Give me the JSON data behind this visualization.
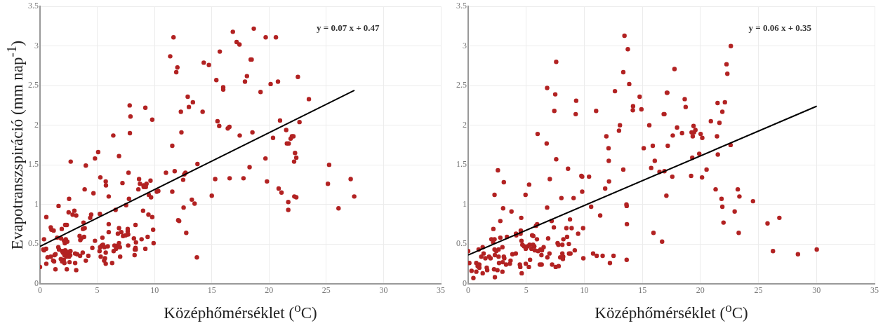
{
  "chart_data": [
    {
      "type": "scatter",
      "xlabel": "Középhőmérséklet ($^{o}$C)",
      "ylabel": "Evapotranszspiráció (mm nap$^{-1}$)",
      "annotations": [
        "y = 0.07 x + 0.47"
      ],
      "xlim": [
        0,
        35
      ],
      "xticks": [
        0,
        5,
        10,
        15,
        20,
        25,
        30,
        35
      ],
      "ylim": [
        0,
        3.5
      ],
      "yticks": [
        0,
        0.5,
        1,
        1.5,
        2,
        2.5,
        3,
        3.5
      ],
      "grid": true,
      "marker": "circle",
      "series": [
        {
          "color": "#b22222",
          "x": [
            11.66,
            11.37,
            12.0,
            11.9,
            15.7,
            14.3,
            14.75,
            15.4,
            16.0,
            16.0,
            12.9,
            13.35,
            13.0,
            12.3,
            14.2,
            7.83,
            7.9,
            7.85,
            9.2,
            9.8,
            15.5,
            15.65,
            16.4,
            6.4,
            12.35,
            11.55,
            6.9,
            5.08,
            4.8,
            2.68,
            4.0,
            13.75,
            7.73,
            11.0,
            11.76,
            12.7,
            12.6,
            5.27,
            5.74,
            5.76,
            8.65,
            9.65,
            7.2,
            12.5,
            15.3,
            8.73,
            9.04,
            9.3,
            9.06,
            9.24,
            8.59,
            3.9,
            11.55,
            10.33,
            10.2,
            6.0,
            9.5,
            9.7,
            15.0,
            4.67,
            7.77,
            2.54,
            1.62,
            7.52,
            13.26,
            13.5,
            12.54,
            2.5,
            3.0,
            2.85,
            3.16,
            4.47,
            4.38,
            5.23,
            6.6,
            9.0,
            9.47,
            9.8,
            0.55,
            3.8,
            3.9,
            3.75,
            6.0,
            8.34,
            12.07,
            12.15,
            2.2,
            2.34,
            0.94,
            1.0,
            1.19,
            1.9,
            6.9,
            7.1,
            7.66,
            7.66,
            6.0,
            9.88,
            12.77,
            3.46,
            3.6,
            3.52,
            3.85,
            6.8,
            7.25,
            7.48,
            7.7,
            5.45,
            8.2,
            8.87,
            9.4,
            1.5,
            1.84,
            2.1,
            2.17,
            2.25,
            2.38,
            0.35,
            4.8,
            8.38,
            9.92,
            6.9,
            6.78,
            6.97,
            7.7,
            8.34,
            8.28,
            9.2,
            5.39,
            5.5,
            5.25,
            5.2,
            5.63,
            5.74,
            5.92,
            6.5,
            6.43,
            6.64,
            4.57,
            0.35,
            0.53,
            0.29,
            1.6,
            1.66,
            1.93,
            2.0,
            2.2,
            2.34,
            2.54,
            2.66,
            2.44,
            2.13,
            2.64,
            2.3,
            2.54,
            3.07,
            3.24,
            3.5,
            3.73,
            4.22,
            5.3,
            5.67,
            7.0,
            8.26,
            8.36,
            0.94,
            0.66,
            1.27,
            1.35,
            1.15,
            1.23,
            1.82,
            2.07,
            1.93,
            2.13,
            2.58,
            3.07,
            4.0,
            5.6,
            5.74,
            6.3,
            0.55,
            0,
            1.35,
            2.34,
            3.16,
            13.7,
            16.84,
            18.67,
            19.71,
            20.6,
            17.17,
            17.42,
            18.4,
            18.48,
            18.07,
            17.9,
            20.78,
            22.52,
            20.14,
            19.26,
            23.48,
            20.96,
            22.66,
            16.54,
            17.44,
            18.55,
            21.5,
            20.35,
            21.89,
            22.0,
            22.13,
            21.56,
            21.72,
            22.27,
            22.38,
            22.19,
            19.69,
            18.3,
            25.25,
            16.56,
            17.77,
            27.13,
            19.82,
            25.14,
            20.84,
            21.09,
            22.21,
            22.38,
            27.44,
            21.68,
            21.68,
            26.07
          ],
          "values": [
            3.11,
            2.87,
            2.73,
            2.67,
            2.93,
            2.79,
            2.76,
            2.57,
            2.48,
            2.45,
            2.36,
            2.29,
            2.23,
            2.17,
            2.17,
            2.25,
            2.11,
            1.9,
            2.22,
            2.07,
            2.05,
            1.99,
            1.96,
            1.87,
            1.91,
            1.74,
            1.61,
            1.66,
            1.58,
            1.54,
            1.49,
            1.51,
            1.4,
            1.4,
            1.42,
            1.4,
            1.38,
            1.34,
            1.29,
            1.24,
            1.32,
            1.3,
            1.27,
            1.31,
            1.32,
            1.26,
            1.24,
            1.26,
            1.22,
            1.22,
            1.19,
            1.19,
            1.16,
            1.17,
            1.16,
            1.1,
            1.12,
            1.09,
            1.11,
            1.14,
            1.07,
            1.07,
            0.98,
            0.99,
            1.06,
            1.01,
            0.96,
            0.9,
            0.92,
            0.87,
            0.86,
            0.87,
            0.83,
            0.88,
            0.93,
            0.92,
            0.87,
            0.84,
            0.84,
            0.77,
            0.7,
            0.69,
            0.75,
            0.74,
            0.8,
            0.79,
            0.74,
            0.74,
            0.71,
            0.68,
            0.67,
            0.69,
            0.7,
            0.65,
            0.69,
            0.66,
            0.65,
            0.68,
            0.64,
            0.6,
            0.57,
            0.55,
            0.59,
            0.63,
            0.6,
            0.61,
            0.62,
            0.58,
            0.57,
            0.56,
            0.59,
            0.58,
            0.57,
            0.54,
            0.51,
            0.56,
            0.53,
            0.56,
            0.54,
            0.52,
            0.51,
            0.51,
            0.48,
            0.46,
            0.48,
            0.45,
            0.43,
            0.44,
            0.48,
            0.49,
            0.46,
            0.41,
            0.46,
            0.39,
            0.47,
            0.48,
            0.41,
            0.44,
            0.45,
            0.42,
            0.44,
            0.43,
            0.46,
            0.43,
            0.41,
            0.39,
            0.42,
            0.4,
            0.4,
            0.41,
            0.37,
            0.36,
            0.36,
            0.34,
            0.34,
            0.38,
            0.37,
            0.35,
            0.39,
            0.35,
            0.34,
            0.32,
            0.34,
            0.36,
            0.43,
            0.34,
            0.33,
            0.36,
            0.37,
            0.29,
            0.28,
            0.31,
            0.3,
            0.28,
            0.26,
            0.27,
            0.26,
            0.29,
            0.29,
            0.25,
            0.26,
            0.25,
            0.21,
            0.18,
            0.18,
            0.17,
            0.33,
            3.18,
            3.22,
            3.11,
            3.11,
            3.05,
            3.02,
            2.83,
            2.83,
            2.62,
            2.55,
            2.55,
            2.61,
            2.52,
            2.42,
            2.33,
            2.06,
            2.04,
            1.98,
            1.87,
            1.91,
            1.94,
            1.84,
            1.83,
            1.86,
            1.86,
            1.77,
            1.77,
            1.65,
            1.59,
            1.54,
            1.58,
            1.47,
            1.5,
            1.33,
            1.33,
            1.32,
            1.29,
            1.26,
            1.2,
            1.15,
            1.1,
            1.09,
            1.1,
            1.03,
            0.93,
            0.95
          ]
        },
        {
          "type": "line",
          "color": "#000000",
          "marker": "none",
          "x": [
            0,
            27.46
          ],
          "values": [
            0.47,
            2.44
          ]
        }
      ]
    },
    {
      "type": "scatter",
      "xlabel": "Középhőmérséklet ($^{o}$C)",
      "annotations": [
        "y = 0.06 x + 0.35"
      ],
      "xlim": [
        0,
        35
      ],
      "xticks": [
        0,
        5,
        10,
        15,
        20,
        25,
        30,
        35
      ],
      "ylim": [
        0,
        3.5
      ],
      "yticks": [
        0,
        0.5,
        1,
        1.5,
        2,
        2.5,
        3,
        3.5
      ],
      "grid": true,
      "marker": "circle",
      "series": [
        {
          "color": "#b22222",
          "x": [
            13.46,
            13.75,
            7.58,
            13.36,
            13.87,
            6.8,
            7.5,
            12.64,
            9.3,
            14.77,
            17.15,
            14.2,
            14.18,
            14.92,
            7.42,
            11.02,
            9.26,
            16.9,
            13.07,
            12.99,
            15.6,
            5.98,
            11.9,
            6.76,
            12.09,
            15.12,
            15.9,
            17.19,
            7.58,
            12.11,
            16.07,
            2.56,
            8.6,
            13.36,
            15.76,
            16.48,
            16.9,
            9.75,
            9.82,
            10.41,
            3.07,
            12.13,
            7.03,
            5.25,
            2.27,
            4.94,
            9.82,
            11.8,
            17.07,
            8.03,
            9.08,
            3.01,
            6.8,
            10.59,
            13.63,
            13.65,
            3.73,
            11.37,
            4.57,
            8.77,
            2.77,
            7.19,
            13.67,
            5.94,
            5.84,
            7.38,
            8.46,
            8.91,
            9.9,
            2.17,
            4.12,
            4.51,
            9.47,
            15.96,
            4.53,
            5.51,
            5.61,
            5.92,
            8.52,
            8.2,
            6.89,
            2.77,
            3.34,
            2.0,
            2.27,
            4.14,
            7.7,
            7.77,
            8.11,
            8.67,
            16.7,
            4.59,
            4.67,
            4.82,
            4.96,
            5.12,
            5.29,
            5.45,
            5.59,
            5.7,
            5.74,
            6.02,
            6.23,
            6.35,
            6.5,
            6.31,
            2.15,
            2.27,
            2.42,
            2.95,
            2.62,
            1.25,
            1.33,
            0.9,
            0,
            1.13,
            1.48,
            1.8,
            1.93,
            2.3,
            2.62,
            3.07,
            3.11,
            3.81,
            4.1,
            3.65,
            7.0,
            8.69,
            8.81,
            8.11,
            9.18,
            10.76,
            11.07,
            11.58,
            12.52,
            0.1,
            0.7,
            0.96,
            0.82,
            0.96,
            1.6,
            1.64,
            2.23,
            2.52,
            2.95,
            2.66,
            2.97,
            3.26,
            3.59,
            1.25,
            0.7,
            0.29,
            0.45,
            2.3,
            4.61,
            4.45,
            4.49,
            5.23,
            4.96,
            5.33,
            6.17,
            6.33,
            6.82,
            7.23,
            7.54,
            7.79,
            7.93,
            8.16,
            8.18,
            9.92,
            12.21,
            13.65,
            22.62,
            17.77,
            22.25,
            22.32,
            17.11,
            18.65,
            18.73,
            21.48,
            22.11,
            21.89,
            16.84,
            20.9,
            21.64,
            17.99,
            19.41,
            19.57,
            19.24,
            19.45,
            19.34,
            18.42,
            17.62,
            20.02,
            20.16,
            21.43,
            22.6,
            19.9,
            21.5,
            19.3,
            20.53,
            17.58,
            19.2,
            20.14,
            21.31,
            23.22,
            21.82,
            23.36,
            24.53,
            21.89,
            22.95,
            21.99,
            23.3,
            25.78,
            26.8,
            26.25,
            28.4,
            30.02
          ],
          "values": [
            3.13,
            2.96,
            2.8,
            2.67,
            2.52,
            2.47,
            2.39,
            2.43,
            2.31,
            2.36,
            2.41,
            2.24,
            2.19,
            2.2,
            2.18,
            2.18,
            2.14,
            2.14,
            2.0,
            1.93,
            2.0,
            1.89,
            1.86,
            1.77,
            1.71,
            1.71,
            1.74,
            1.74,
            1.57,
            1.55,
            1.55,
            1.43,
            1.45,
            1.44,
            1.46,
            1.41,
            1.42,
            1.36,
            1.35,
            1.35,
            1.28,
            1.29,
            1.32,
            1.25,
            1.12,
            1.12,
            1.16,
            1.2,
            1.11,
            1.08,
            1.08,
            0.95,
            0.96,
            0.97,
            1.0,
            0.98,
            0.91,
            0.86,
            0.83,
            0.81,
            0.79,
            0.79,
            0.75,
            0.75,
            0.73,
            0.71,
            0.7,
            0.7,
            0.7,
            0.69,
            0.63,
            0.63,
            0.63,
            0.64,
            0.67,
            0.61,
            0.6,
            0.56,
            0.59,
            0.56,
            0.57,
            0.58,
            0.59,
            0.56,
            0.56,
            0.61,
            0.51,
            0.49,
            0.49,
            0.5,
            0.53,
            0.54,
            0.49,
            0.47,
            0.44,
            0.47,
            0.49,
            0.44,
            0.49,
            0.47,
            0.42,
            0.41,
            0.43,
            0.42,
            0.46,
            0.36,
            0.52,
            0.43,
            0.41,
            0.46,
            0.43,
            0.46,
            0.38,
            0.43,
            0.41,
            0.34,
            0.32,
            0.34,
            0.32,
            0.36,
            0.34,
            0.34,
            0.32,
            0.37,
            0.38,
            0.29,
            0.38,
            0.38,
            0.38,
            0.38,
            0.42,
            0.38,
            0.35,
            0.35,
            0.35,
            0.26,
            0.26,
            0.24,
            0.22,
            0.2,
            0.2,
            0.17,
            0.18,
            0.17,
            0.15,
            0.26,
            0.27,
            0.24,
            0.25,
            0.13,
            0.15,
            0.16,
            0.07,
            0.08,
            0.13,
            0.24,
            0.21,
            0.21,
            0.25,
            0.3,
            0.24,
            0.24,
            0.33,
            0.24,
            0.21,
            0.22,
            0.33,
            0.31,
            0.34,
            0.32,
            0.26,
            0.3,
            3.0,
            2.71,
            2.77,
            2.65,
            2.41,
            2.33,
            2.23,
            2.28,
            2.29,
            2.17,
            2.14,
            2.05,
            2.03,
            1.97,
            1.99,
            1.94,
            1.91,
            1.91,
            1.86,
            1.9,
            1.87,
            1.89,
            1.84,
            1.86,
            1.75,
            1.64,
            1.63,
            1.59,
            1.44,
            1.35,
            1.36,
            1.34,
            1.19,
            1.19,
            1.07,
            1.1,
            1.04,
            0.97,
            0.91,
            0.77,
            0.64,
            0.76,
            0.83,
            0.41,
            0.37,
            0.43
          ]
        },
        {
          "type": "line",
          "color": "#000000",
          "marker": "none",
          "x": [
            0,
            30.02
          ],
          "values": [
            0.36,
            2.24
          ]
        }
      ]
    }
  ]
}
